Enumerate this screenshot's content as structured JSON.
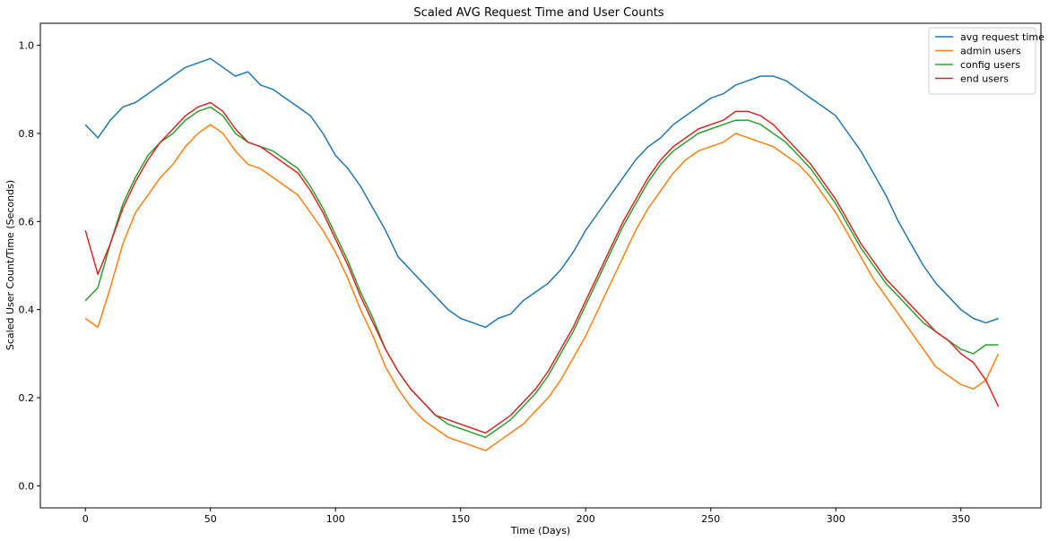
{
  "chart_data": {
    "type": "line",
    "title": "Scaled AVG Request Time and User Counts",
    "xlabel": "Time (Days)",
    "ylabel": "Scaled User Count/Time (Seconds)",
    "xlim": [
      -18,
      382
    ],
    "ylim": [
      -0.05,
      1.05
    ],
    "xticks": [
      0,
      50,
      100,
      150,
      200,
      250,
      300,
      350
    ],
    "yticks": [
      0.0,
      0.2,
      0.4,
      0.6,
      0.8,
      1.0
    ],
    "grid": false,
    "legend_position": "top-right",
    "x_step": 5,
    "series": [
      {
        "name": "avg request time",
        "color": "#1f77b4",
        "values": [
          0.82,
          0.79,
          0.83,
          0.86,
          0.87,
          0.89,
          0.91,
          0.93,
          0.95,
          0.96,
          0.97,
          0.95,
          0.93,
          0.94,
          0.91,
          0.9,
          0.88,
          0.86,
          0.84,
          0.8,
          0.75,
          0.72,
          0.68,
          0.63,
          0.58,
          0.52,
          0.49,
          0.46,
          0.43,
          0.4,
          0.38,
          0.37,
          0.36,
          0.38,
          0.39,
          0.42,
          0.44,
          0.46,
          0.49,
          0.53,
          0.58,
          0.62,
          0.66,
          0.7,
          0.74,
          0.77,
          0.79,
          0.82,
          0.84,
          0.86,
          0.88,
          0.89,
          0.91,
          0.92,
          0.93,
          0.93,
          0.92,
          0.9,
          0.88,
          0.86,
          0.84,
          0.8,
          0.76,
          0.71,
          0.66,
          0.6,
          0.55,
          0.5,
          0.46,
          0.43,
          0.4,
          0.38,
          0.37,
          0.38
        ]
      },
      {
        "name": "admin users",
        "color": "#ff7f0e",
        "values": [
          0.38,
          0.36,
          0.45,
          0.55,
          0.62,
          0.66,
          0.7,
          0.73,
          0.77,
          0.8,
          0.82,
          0.8,
          0.76,
          0.73,
          0.72,
          0.7,
          0.68,
          0.66,
          0.62,
          0.58,
          0.53,
          0.47,
          0.4,
          0.34,
          0.27,
          0.22,
          0.18,
          0.15,
          0.13,
          0.11,
          0.1,
          0.09,
          0.08,
          0.1,
          0.12,
          0.14,
          0.17,
          0.2,
          0.24,
          0.29,
          0.34,
          0.4,
          0.46,
          0.52,
          0.58,
          0.63,
          0.67,
          0.71,
          0.74,
          0.76,
          0.77,
          0.78,
          0.8,
          0.79,
          0.78,
          0.77,
          0.75,
          0.73,
          0.7,
          0.66,
          0.62,
          0.57,
          0.52,
          0.47,
          0.43,
          0.39,
          0.35,
          0.31,
          0.27,
          0.25,
          0.23,
          0.22,
          0.24,
          0.3
        ]
      },
      {
        "name": "config users",
        "color": "#2ca02c",
        "values": [
          0.42,
          0.45,
          0.55,
          0.64,
          0.7,
          0.75,
          0.78,
          0.8,
          0.83,
          0.85,
          0.86,
          0.84,
          0.8,
          0.78,
          0.77,
          0.76,
          0.74,
          0.72,
          0.68,
          0.63,
          0.57,
          0.51,
          0.44,
          0.38,
          0.31,
          0.26,
          0.22,
          0.19,
          0.16,
          0.14,
          0.13,
          0.12,
          0.11,
          0.13,
          0.15,
          0.18,
          0.21,
          0.25,
          0.3,
          0.35,
          0.41,
          0.47,
          0.53,
          0.59,
          0.64,
          0.69,
          0.73,
          0.76,
          0.78,
          0.8,
          0.81,
          0.82,
          0.83,
          0.83,
          0.82,
          0.8,
          0.78,
          0.75,
          0.72,
          0.68,
          0.64,
          0.59,
          0.54,
          0.5,
          0.46,
          0.43,
          0.4,
          0.37,
          0.35,
          0.33,
          0.31,
          0.3,
          0.32,
          0.32
        ]
      },
      {
        "name": "end users",
        "color": "#d62728",
        "values": [
          0.58,
          0.48,
          0.55,
          0.63,
          0.69,
          0.74,
          0.78,
          0.81,
          0.84,
          0.86,
          0.87,
          0.85,
          0.81,
          0.78,
          0.77,
          0.75,
          0.73,
          0.71,
          0.67,
          0.62,
          0.56,
          0.5,
          0.43,
          0.37,
          0.31,
          0.26,
          0.22,
          0.19,
          0.16,
          0.15,
          0.14,
          0.13,
          0.12,
          0.14,
          0.16,
          0.19,
          0.22,
          0.26,
          0.31,
          0.36,
          0.42,
          0.48,
          0.54,
          0.6,
          0.65,
          0.7,
          0.74,
          0.77,
          0.79,
          0.81,
          0.82,
          0.83,
          0.85,
          0.85,
          0.84,
          0.82,
          0.79,
          0.76,
          0.73,
          0.69,
          0.65,
          0.6,
          0.55,
          0.51,
          0.47,
          0.44,
          0.41,
          0.38,
          0.35,
          0.33,
          0.3,
          0.28,
          0.24,
          0.18
        ]
      }
    ]
  }
}
